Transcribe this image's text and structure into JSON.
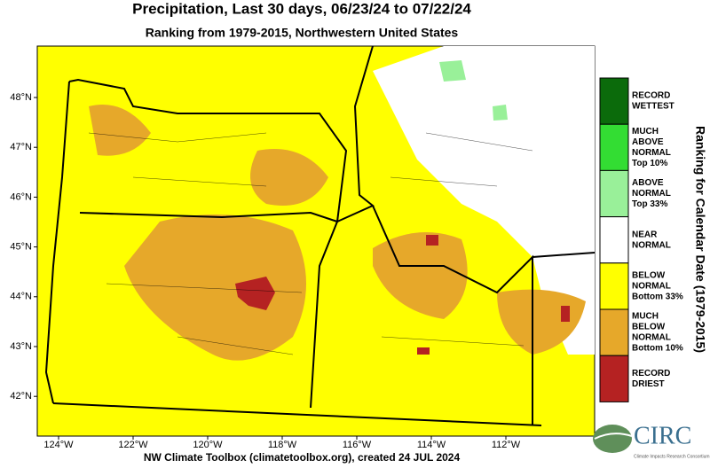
{
  "header": {
    "title": "Precipitation, Last 30 days, 06/23/24 to 07/22/24",
    "subtitle": "Ranking from 1979-2015, Northwestern United States"
  },
  "map": {
    "lat_labels": [
      "48°N",
      "47°N",
      "46°N",
      "45°N",
      "44°N",
      "43°N",
      "42°N"
    ],
    "lon_labels": [
      "124°W",
      "122°W",
      "120°W",
      "118°W",
      "116°W",
      "114°W",
      "112°W"
    ]
  },
  "legend": {
    "title": "Ranking for Calendar Date (1979-2015)",
    "items": [
      {
        "lines": [
          "RECORD",
          "WETTEST"
        ],
        "color": "#0b6b0b"
      },
      {
        "lines": [
          "MUCH",
          "ABOVE",
          "NORMAL",
          "Top 10%"
        ],
        "color": "#33dd33"
      },
      {
        "lines": [
          "ABOVE",
          "NORMAL",
          "Top 33%"
        ],
        "color": "#99f099"
      },
      {
        "lines": [
          "NEAR",
          "NORMAL"
        ],
        "color": "#ffffff"
      },
      {
        "lines": [
          "BELOW",
          "NORMAL",
          "Bottom 33%"
        ],
        "color": "#ffff00"
      },
      {
        "lines": [
          "MUCH",
          "BELOW",
          "NORMAL",
          "Bottom 10%"
        ],
        "color": "#e6a82a"
      },
      {
        "lines": [
          "RECORD",
          "DRIEST"
        ],
        "color": "#b52222"
      }
    ]
  },
  "footer": {
    "credit": "NW Climate Toolbox (climatetoolbox.org), created 24 JUL 2024"
  },
  "logo": {
    "name": "CIRC",
    "tagline": "Climate Impacts Research Consortium"
  }
}
